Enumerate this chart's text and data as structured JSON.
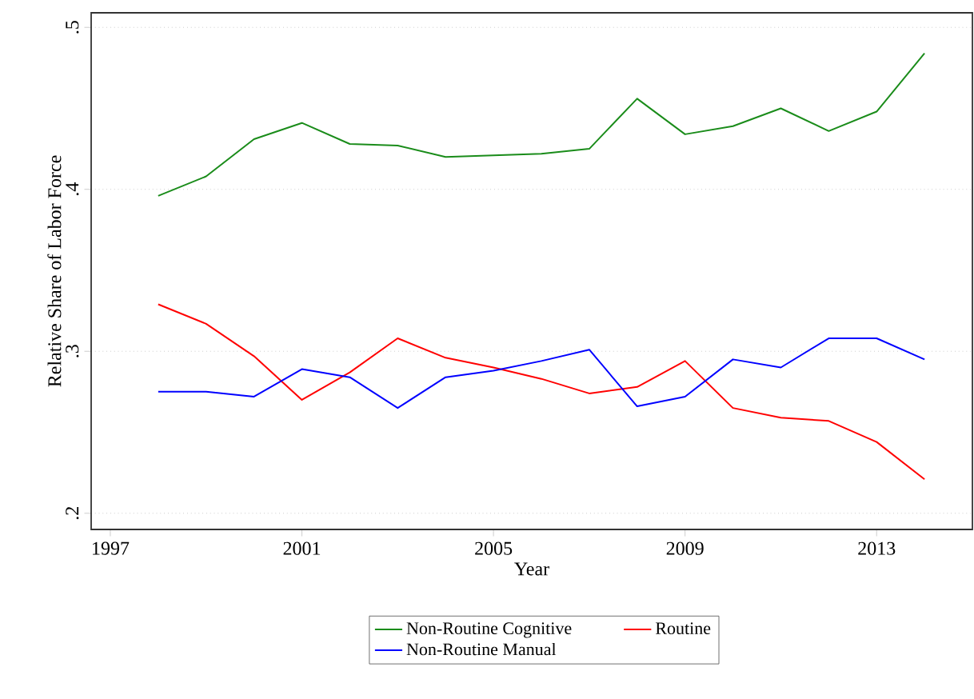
{
  "chart_data": {
    "type": "line",
    "xlabel": "Year",
    "ylabel": "Relative Share of Labor Force",
    "x": [
      1998,
      1999,
      2000,
      2001,
      2002,
      2003,
      2004,
      2005,
      2006,
      2007,
      2008,
      2009,
      2010,
      2011,
      2012,
      2013,
      2014
    ],
    "series": [
      {
        "name": "Non-Routine Cognitive",
        "color": "#1a8c1a",
        "values": [
          0.396,
          0.408,
          0.431,
          0.441,
          0.428,
          0.427,
          0.42,
          0.421,
          0.422,
          0.425,
          0.456,
          0.434,
          0.439,
          0.45,
          0.436,
          0.448,
          0.484
        ]
      },
      {
        "name": "Routine",
        "color": "#ff0000",
        "values": [
          0.329,
          0.317,
          0.297,
          0.27,
          0.287,
          0.308,
          0.296,
          0.29,
          0.283,
          0.274,
          0.278,
          0.294,
          0.265,
          0.259,
          0.257,
          0.244,
          0.221
        ]
      },
      {
        "name": "Non-Routine Manual",
        "color": "#0000ff",
        "values": [
          0.275,
          0.275,
          0.272,
          0.289,
          0.284,
          0.265,
          0.284,
          0.288,
          0.294,
          0.301,
          0.266,
          0.272,
          0.295,
          0.29,
          0.308,
          0.308,
          0.295
        ]
      }
    ],
    "xlim": [
      1996.6,
      2015
    ],
    "ylim": [
      0.19,
      0.509
    ],
    "xticks": [
      1997,
      2001,
      2005,
      2009,
      2013
    ],
    "yticks": [
      {
        "value": 0.2,
        "label": ".2"
      },
      {
        "value": 0.3,
        "label": ".3"
      },
      {
        "value": 0.4,
        "label": ".4"
      },
      {
        "value": 0.5,
        "label": ".5"
      }
    ],
    "grid": "y",
    "legend": "bottom",
    "line_style": "solid",
    "marker": "none"
  }
}
